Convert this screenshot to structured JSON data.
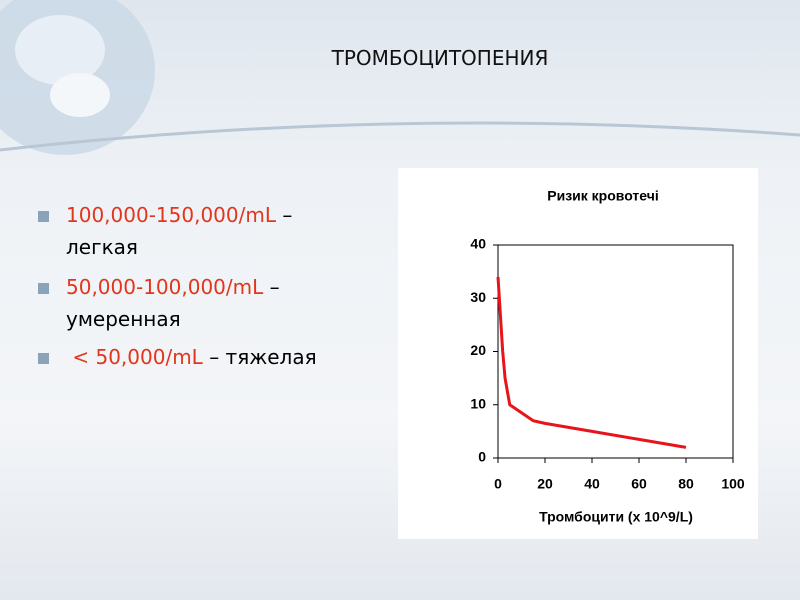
{
  "title": "ТРОМБОЦИТОПЕНИЯ",
  "bullets": [
    {
      "range": "100,000-150,000/mL",
      "severity": "– легкая"
    },
    {
      "range": "50,000-100,000/mL",
      "severity": "– умеренная"
    },
    {
      "range": " < 50,000/mL",
      "severity": "– тяжелая"
    }
  ],
  "chart_data": {
    "type": "line",
    "title": "Ризик кровотечі",
    "x_label": "Тромбоцити (x 10^9/L)",
    "x": [
      0,
      1,
      2,
      3,
      5,
      10,
      15,
      20,
      40,
      60,
      80
    ],
    "values": [
      34,
      27,
      20,
      15,
      10,
      8.5,
      7,
      6.5,
      5,
      3.5,
      2
    ],
    "color": "#e8141c",
    "xlim": [
      0,
      100
    ],
    "xticks": [
      0,
      20,
      40,
      60,
      80,
      100
    ],
    "ylim": [
      0,
      40
    ],
    "yticks": [
      0,
      10,
      20,
      30,
      40
    ]
  }
}
